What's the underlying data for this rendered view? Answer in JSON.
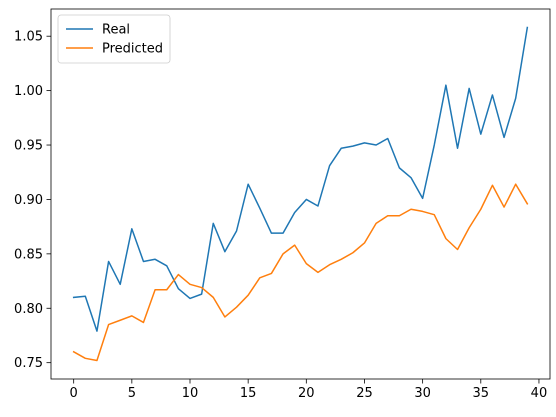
{
  "chart_data": {
    "type": "line",
    "title": "",
    "xlabel": "",
    "ylabel": "",
    "xlim": [
      -1.95,
      40.95
    ],
    "ylim": [
      0.735,
      1.075
    ],
    "xticks": [
      0,
      5,
      10,
      15,
      20,
      25,
      30,
      35,
      40
    ],
    "yticks": [
      0.75,
      0.8,
      0.85,
      0.9,
      0.95,
      1.0,
      1.05
    ],
    "grid": false,
    "legend_position": "top-left",
    "series": [
      {
        "name": "Real",
        "color": "#1f77b4",
        "x": [
          0,
          1,
          2,
          3,
          4,
          5,
          6,
          7,
          8,
          9,
          10,
          11,
          12,
          13,
          14,
          15,
          16,
          17,
          18,
          19,
          20,
          21,
          22,
          23,
          24,
          25,
          26,
          27,
          28,
          29,
          30,
          31,
          32,
          33,
          34,
          35,
          36,
          37,
          38,
          39
        ],
        "values": [
          0.81,
          0.811,
          0.779,
          0.843,
          0.822,
          0.873,
          0.843,
          0.845,
          0.839,
          0.818,
          0.809,
          0.813,
          0.878,
          0.852,
          0.871,
          0.914,
          0.892,
          0.869,
          0.869,
          0.888,
          0.9,
          0.894,
          0.931,
          0.947,
          0.949,
          0.952,
          0.95,
          0.956,
          0.929,
          0.92,
          0.901,
          0.95,
          1.005,
          0.947,
          1.002,
          0.96,
          0.996,
          0.957,
          0.993,
          1.058
        ]
      },
      {
        "name": "Predicted",
        "color": "#ff7f0e",
        "x": [
          0,
          1,
          2,
          3,
          4,
          5,
          6,
          7,
          8,
          9,
          10,
          11,
          12,
          13,
          14,
          15,
          16,
          17,
          18,
          19,
          20,
          21,
          22,
          23,
          24,
          25,
          26,
          27,
          28,
          29,
          30,
          31,
          32,
          33,
          34,
          35,
          36,
          37,
          38,
          39
        ],
        "values": [
          0.76,
          0.754,
          0.752,
          0.785,
          0.789,
          0.793,
          0.787,
          0.817,
          0.817,
          0.831,
          0.822,
          0.819,
          0.81,
          0.792,
          0.801,
          0.812,
          0.828,
          0.832,
          0.85,
          0.858,
          0.841,
          0.833,
          0.84,
          0.845,
          0.851,
          0.86,
          0.878,
          0.885,
          0.885,
          0.891,
          0.889,
          0.886,
          0.864,
          0.854,
          0.874,
          0.891,
          0.913,
          0.893,
          0.914,
          0.896
        ]
      }
    ]
  }
}
